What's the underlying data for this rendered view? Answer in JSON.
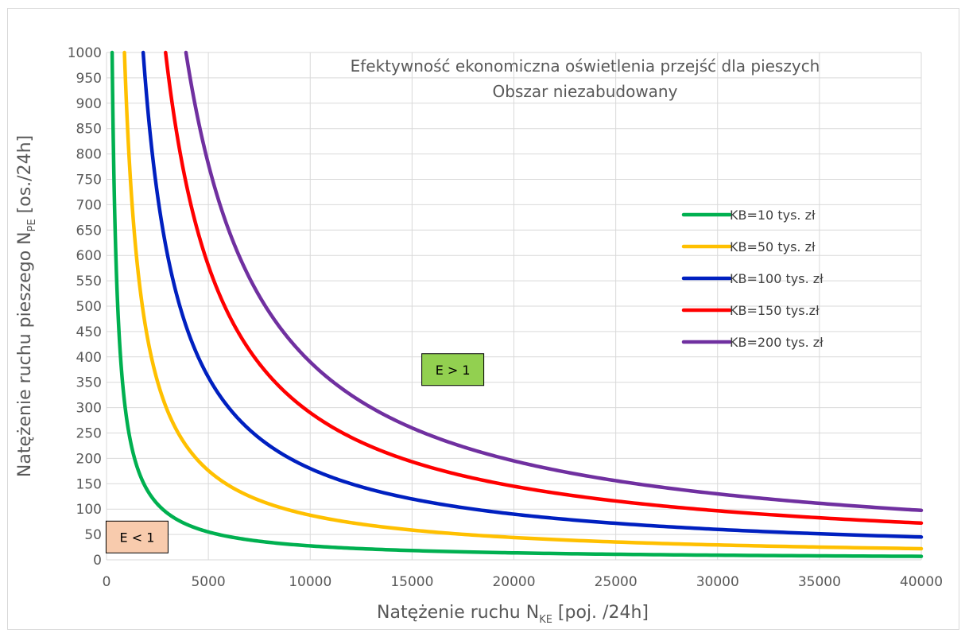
{
  "chart_data": {
    "type": "line",
    "title": "Efektywność ekonomiczna oświetlenia przejść dla pieszych",
    "subtitle": "Obszar niezabudowany",
    "xlabel": {
      "main": "Natężenie ruchu N",
      "sub": "KE",
      "suffix": " [poj. /24h]"
    },
    "ylabel": {
      "main": "Natężenie ruchu pieszego N",
      "sub": "PE",
      "suffix": " [os./24h]"
    },
    "xlim": [
      0,
      40000
    ],
    "ylim": [
      0,
      1000
    ],
    "x_ticks": [
      0,
      5000,
      10000,
      15000,
      20000,
      25000,
      30000,
      35000,
      40000
    ],
    "y_ticks": [
      0,
      50,
      100,
      150,
      200,
      250,
      300,
      350,
      400,
      450,
      500,
      550,
      600,
      650,
      700,
      750,
      800,
      850,
      900,
      950,
      1000
    ],
    "grid": true,
    "legend_position": "right",
    "series": [
      {
        "name": "KB=10 tys. zł",
        "color": "#00b050",
        "model": "y = k / x",
        "k": 275000,
        "x": [
          300,
          500,
          1000,
          1500,
          2000,
          3000,
          4000,
          5000,
          10000,
          15000,
          20000,
          30000,
          40000
        ],
        "y": [
          917,
          550,
          275,
          183,
          138,
          92,
          69,
          55,
          28,
          18,
          14,
          9,
          7
        ]
      },
      {
        "name": "KB=50 tys. zł",
        "color": "#ffc000",
        "model": "y = k / x",
        "k": 880000,
        "x": [
          900,
          1500,
          2000,
          3000,
          4000,
          5000,
          10000,
          15000,
          20000,
          30000,
          40000
        ],
        "y": [
          978,
          587,
          440,
          293,
          220,
          176,
          88,
          59,
          44,
          29,
          22
        ]
      },
      {
        "name": "KB=100 tys. zł",
        "color": "#0020c0",
        "model": "y = k / x",
        "k": 1800000,
        "x": [
          1850,
          3000,
          4000,
          5000,
          7500,
          10000,
          15000,
          20000,
          30000,
          40000
        ],
        "y": [
          973,
          600,
          450,
          360,
          240,
          180,
          120,
          90,
          60,
          45
        ]
      },
      {
        "name": "KB=150 tys.zł",
        "color": "#ff0000",
        "model": "y = k / x",
        "k": 2900000,
        "x": [
          2950,
          4000,
          5000,
          7500,
          10000,
          15000,
          20000,
          30000,
          40000
        ],
        "y": [
          983,
          725,
          580,
          387,
          290,
          193,
          145,
          97,
          73
        ]
      },
      {
        "name": "KB=200 tys. zł",
        "color": "#7030a0",
        "model": "y = k / x",
        "k": 3900000,
        "x": [
          3950,
          5000,
          7500,
          10000,
          15000,
          20000,
          30000,
          40000
        ],
        "y": [
          987,
          780,
          520,
          390,
          260,
          195,
          130,
          98
        ]
      }
    ],
    "annotations": [
      {
        "text": "E > 1",
        "fill": "#92d050",
        "x": 17000,
        "y": 375
      },
      {
        "text": "E < 1",
        "fill": "#f8cbad",
        "x": 1500,
        "y": 45
      }
    ]
  }
}
